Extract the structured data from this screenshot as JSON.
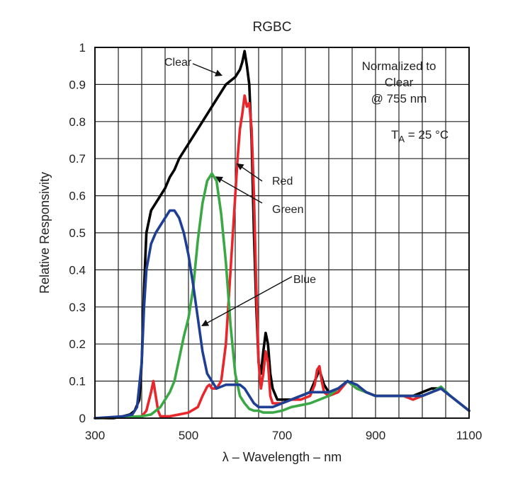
{
  "chart_data": {
    "type": "line",
    "title": "RGBC",
    "xlabel": "λ – Wavelength – nm",
    "ylabel": "Relative Responsivity",
    "xlim": [
      300,
      1100
    ],
    "ylim": [
      0,
      1
    ],
    "xticks": [
      300,
      500,
      700,
      900,
      1100
    ],
    "yticks": [
      0,
      0.1,
      0.2,
      0.3,
      0.4,
      0.5,
      0.6,
      0.7,
      0.8,
      0.9,
      1
    ],
    "ytick_labels": [
      "0",
      "0.1",
      "0.2",
      "0.3",
      "0.4",
      "0.5",
      "0.6",
      "0.7",
      "0.8",
      "0.9",
      "1"
    ],
    "x_grid_step": 50,
    "grid": true,
    "note": {
      "line1": "Normalized to",
      "line2": "Clear",
      "line3": "@ 755 nm",
      "temp_prefix": "T",
      "temp_sub": "A",
      "temp_rest": " = 25 °C"
    },
    "series": [
      {
        "name": "Clear",
        "color": "#000000",
        "x": [
          300,
          340,
          360,
          375,
          385,
          395,
          400,
          405,
          410,
          420,
          430,
          440,
          450,
          460,
          470,
          480,
          490,
          500,
          510,
          520,
          530,
          540,
          550,
          560,
          570,
          580,
          590,
          600,
          605,
          610,
          615,
          620,
          625,
          630,
          635,
          640,
          645,
          650,
          655,
          660,
          665,
          670,
          675,
          680,
          690,
          700,
          720,
          740,
          760,
          780,
          790,
          800,
          820,
          840,
          860,
          880,
          900,
          920,
          940,
          960,
          980,
          1000,
          1020,
          1040,
          1060,
          1080,
          1100
        ],
        "y": [
          0,
          0,
          0.005,
          0.01,
          0.02,
          0.05,
          0.15,
          0.35,
          0.5,
          0.56,
          0.58,
          0.6,
          0.62,
          0.65,
          0.67,
          0.7,
          0.72,
          0.74,
          0.76,
          0.78,
          0.8,
          0.82,
          0.84,
          0.86,
          0.88,
          0.9,
          0.91,
          0.92,
          0.93,
          0.94,
          0.96,
          0.99,
          0.95,
          0.9,
          0.75,
          0.5,
          0.3,
          0.15,
          0.12,
          0.18,
          0.23,
          0.2,
          0.12,
          0.08,
          0.05,
          0.05,
          0.05,
          0.06,
          0.07,
          0.13,
          0.09,
          0.07,
          0.08,
          0.1,
          0.08,
          0.07,
          0.06,
          0.06,
          0.06,
          0.06,
          0.06,
          0.07,
          0.08,
          0.08,
          0.06,
          0.04,
          0.02
        ]
      },
      {
        "name": "Red",
        "color": "#e8262b",
        "x": [
          300,
          400,
          410,
          420,
          425,
          430,
          435,
          440,
          460,
          480,
          500,
          520,
          530,
          540,
          545,
          550,
          560,
          570,
          580,
          590,
          600,
          605,
          610,
          615,
          620,
          625,
          630,
          635,
          640,
          645,
          650,
          655,
          660,
          665,
          670,
          675,
          680,
          700,
          720,
          740,
          760,
          770,
          775,
          780,
          785,
          790,
          800,
          820,
          840,
          860,
          880,
          900,
          920,
          940,
          960,
          980,
          1000,
          1020,
          1040,
          1060,
          1080,
          1100
        ],
        "y": [
          0,
          0.005,
          0.02,
          0.07,
          0.1,
          0.06,
          0.02,
          0.005,
          0.005,
          0.01,
          0.015,
          0.03,
          0.06,
          0.085,
          0.09,
          0.08,
          0.08,
          0.1,
          0.2,
          0.4,
          0.6,
          0.7,
          0.78,
          0.82,
          0.87,
          0.84,
          0.85,
          0.78,
          0.6,
          0.35,
          0.15,
          0.08,
          0.12,
          0.18,
          0.15,
          0.06,
          0.04,
          0.04,
          0.05,
          0.05,
          0.06,
          0.09,
          0.13,
          0.14,
          0.1,
          0.07,
          0.06,
          0.07,
          0.1,
          0.08,
          0.07,
          0.06,
          0.06,
          0.06,
          0.06,
          0.05,
          0.06,
          0.07,
          0.08,
          0.06,
          0.04,
          0.02
        ]
      },
      {
        "name": "Green",
        "color": "#3aa945",
        "x": [
          300,
          400,
          420,
          440,
          460,
          470,
          480,
          490,
          500,
          510,
          520,
          530,
          540,
          550,
          560,
          570,
          580,
          590,
          600,
          610,
          620,
          630,
          640,
          650,
          660,
          670,
          680,
          700,
          720,
          740,
          760,
          780,
          800,
          820,
          840,
          860,
          880,
          900,
          920,
          940,
          960,
          980,
          1000,
          1020,
          1040,
          1060,
          1080,
          1100
        ],
        "y": [
          0,
          0.005,
          0.01,
          0.03,
          0.07,
          0.1,
          0.16,
          0.22,
          0.27,
          0.35,
          0.48,
          0.58,
          0.64,
          0.66,
          0.64,
          0.55,
          0.42,
          0.25,
          0.12,
          0.06,
          0.04,
          0.025,
          0.02,
          0.02,
          0.015,
          0.015,
          0.015,
          0.02,
          0.03,
          0.035,
          0.04,
          0.05,
          0.06,
          0.08,
          0.1,
          0.08,
          0.07,
          0.06,
          0.06,
          0.06,
          0.06,
          0.06,
          0.06,
          0.07,
          0.085,
          0.06,
          0.04,
          0.02
        ]
      },
      {
        "name": "Blue",
        "color": "#1f3f95",
        "x": [
          300,
          360,
          380,
          390,
          400,
          405,
          410,
          420,
          430,
          440,
          450,
          460,
          470,
          480,
          490,
          500,
          510,
          520,
          530,
          540,
          550,
          560,
          570,
          580,
          590,
          600,
          610,
          620,
          630,
          640,
          650,
          660,
          670,
          680,
          700,
          720,
          740,
          760,
          780,
          800,
          820,
          840,
          860,
          880,
          900,
          920,
          940,
          960,
          980,
          1000,
          1020,
          1040,
          1060,
          1080,
          1100
        ],
        "y": [
          0,
          0.005,
          0.01,
          0.03,
          0.15,
          0.3,
          0.4,
          0.47,
          0.5,
          0.52,
          0.54,
          0.56,
          0.56,
          0.54,
          0.5,
          0.44,
          0.36,
          0.27,
          0.18,
          0.12,
          0.1,
          0.08,
          0.085,
          0.09,
          0.09,
          0.09,
          0.09,
          0.08,
          0.06,
          0.04,
          0.03,
          0.03,
          0.03,
          0.03,
          0.04,
          0.05,
          0.06,
          0.07,
          0.07,
          0.07,
          0.08,
          0.1,
          0.09,
          0.07,
          0.06,
          0.06,
          0.06,
          0.06,
          0.06,
          0.06,
          0.07,
          0.08,
          0.06,
          0.04,
          0.02
        ]
      }
    ],
    "annotations": [
      {
        "text": "Clear",
        "text_x": 0,
        "text_y": 0,
        "arrow_to": [
          570,
          0.925
        ]
      },
      {
        "text": "Red",
        "text_x": 0,
        "text_y": 0,
        "arrow_to": [
          605,
          0.685
        ]
      },
      {
        "text": "Green",
        "text_x": 0,
        "text_y": 0,
        "arrow_to": [
          560,
          0.65
        ]
      },
      {
        "text": "Blue",
        "text_x": 0,
        "text_y": 0,
        "arrow_to": [
          530,
          0.25
        ]
      }
    ]
  }
}
